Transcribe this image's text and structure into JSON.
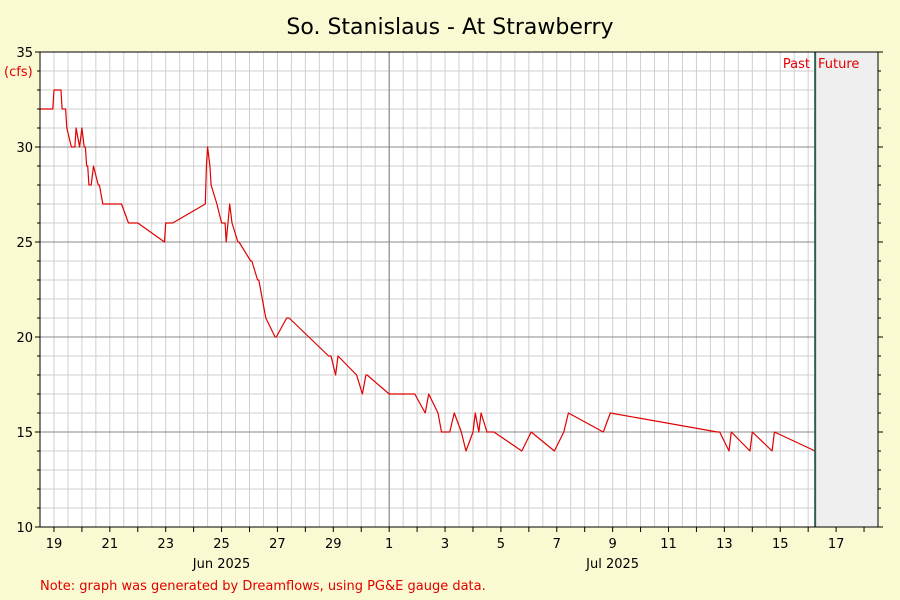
{
  "chart_data": {
    "type": "line",
    "title": "So. Stanislaus - At Strawberry",
    "ylabel": "(cfs)",
    "ylim": [
      10,
      35
    ],
    "y_ticks": [
      10,
      15,
      20,
      25,
      30,
      35
    ],
    "xlim": [
      "2025-06-18 12:00",
      "2025-07-18 12:00"
    ],
    "x_tick_labels": [
      {
        "date": "2025-06-19",
        "label": "19"
      },
      {
        "date": "2025-06-21",
        "label": "21"
      },
      {
        "date": "2025-06-23",
        "label": "23"
      },
      {
        "date": "2025-06-25",
        "label": "25"
      },
      {
        "date": "2025-06-27",
        "label": "27"
      },
      {
        "date": "2025-06-29",
        "label": "29"
      },
      {
        "date": "2025-07-01",
        "label": "1"
      },
      {
        "date": "2025-07-03",
        "label": "3"
      },
      {
        "date": "2025-07-05",
        "label": "5"
      },
      {
        "date": "2025-07-07",
        "label": "7"
      },
      {
        "date": "2025-07-09",
        "label": "9"
      },
      {
        "date": "2025-07-11",
        "label": "11"
      },
      {
        "date": "2025-07-13",
        "label": "13"
      },
      {
        "date": "2025-07-15",
        "label": "15"
      },
      {
        "date": "2025-07-17",
        "label": "17"
      }
    ],
    "month_labels": [
      {
        "date": "2025-06-25",
        "label": "Jun 2025"
      },
      {
        "date": "2025-07-09",
        "label": "Jul 2025"
      }
    ],
    "month_boundary": "2025-07-01",
    "now": "2025-07-16 06:00",
    "past_label": "Past",
    "future_label": "Future",
    "grid": true,
    "series": [
      {
        "color": "#e00000",
        "x": [
          "2025-06-18 12:00",
          "2025-06-18 23:00",
          "2025-06-19 00:00",
          "2025-06-19 06:00",
          "2025-06-19 07:00",
          "2025-06-19 10:00",
          "2025-06-19 11:00",
          "2025-06-19 15:00",
          "2025-06-19 18:00",
          "2025-06-19 19:00",
          "2025-06-19 22:00",
          "2025-06-20 00:00",
          "2025-06-20 02:00",
          "2025-06-20 03:00",
          "2025-06-20 04:00",
          "2025-06-20 05:00",
          "2025-06-20 06:00",
          "2025-06-20 07:00",
          "2025-06-20 08:00",
          "2025-06-20 10:00",
          "2025-06-20 14:00",
          "2025-06-20 15:00",
          "2025-06-20 18:00",
          "2025-06-21 10:00",
          "2025-06-21 16:00",
          "2025-06-21 17:00",
          "2025-06-22 00:00",
          "2025-06-22 23:00",
          "2025-06-23 00:00",
          "2025-06-23 04:00",
          "2025-06-23 05:00",
          "2025-06-23 06:00",
          "2025-06-24 10:00",
          "2025-06-24 11:00",
          "2025-06-24 12:00",
          "2025-06-24 14:00",
          "2025-06-24 15:00",
          "2025-06-24 20:00",
          "2025-06-25 00:00",
          "2025-06-25 03:00",
          "2025-06-25 04:00",
          "2025-06-25 07:00",
          "2025-06-25 09:00",
          "2025-06-25 14:00",
          "2025-06-25 15:00",
          "2025-06-26 01:00",
          "2025-06-26 02:00",
          "2025-06-26 07:00",
          "2025-06-26 08:00",
          "2025-06-26 14:00",
          "2025-06-26 22:00",
          "2025-06-26 23:00",
          "2025-06-27 08:00",
          "2025-06-27 10:00",
          "2025-06-28 20:00",
          "2025-06-28 22:00",
          "2025-06-29 02:00",
          "2025-06-29 04:00",
          "2025-06-29 20:00",
          "2025-06-30 01:00",
          "2025-06-30 04:00",
          "2025-06-30 05:00",
          "2025-07-01 00:00",
          "2025-07-01 22:00",
          "2025-07-02 07:00",
          "2025-07-02 10:00",
          "2025-07-02 18:00",
          "2025-07-02 21:00",
          "2025-07-03 04:00",
          "2025-07-03 08:00",
          "2025-07-03 14:00",
          "2025-07-03 18:00",
          "2025-07-04 00:00",
          "2025-07-04 02:00",
          "2025-07-04 05:00",
          "2025-07-04 07:00",
          "2025-07-04 12:00",
          "2025-07-04 18:00",
          "2025-07-05 18:00",
          "2025-07-06 02:00",
          "2025-07-06 22:00",
          "2025-07-07 06:00",
          "2025-07-07 10:00",
          "2025-07-08 16:00",
          "2025-07-08 22:00",
          "2025-07-12 18:00",
          "2025-07-12 20:00",
          "2025-07-13 04:00",
          "2025-07-13 06:00",
          "2025-07-13 22:00",
          "2025-07-14 00:00",
          "2025-07-14 17:00",
          "2025-07-14 19:00",
          "2025-07-16 06:00"
        ],
        "y": [
          32,
          32,
          33,
          33,
          32,
          32,
          31,
          30,
          30,
          31,
          30,
          31,
          30,
          30,
          29,
          29,
          28,
          28,
          28,
          29,
          28,
          28,
          27,
          27,
          26,
          26,
          26,
          25,
          26,
          26,
          26,
          26,
          27,
          29,
          30,
          29,
          28,
          27,
          26,
          26,
          25,
          27,
          26,
          25,
          25,
          24,
          24,
          23,
          23,
          21,
          20,
          20,
          21,
          21,
          19,
          19,
          18,
          19,
          18,
          17,
          18,
          18,
          17,
          17,
          16,
          17,
          16,
          15,
          15,
          16,
          15,
          14,
          15,
          16,
          15,
          16,
          15,
          15,
          14,
          15,
          14,
          15,
          16,
          15,
          16,
          15,
          15,
          14,
          15,
          14,
          15,
          14,
          15,
          14
        ]
      }
    ]
  },
  "note": "Note: graph was generated by Dreamflows, using PG&E gauge data."
}
